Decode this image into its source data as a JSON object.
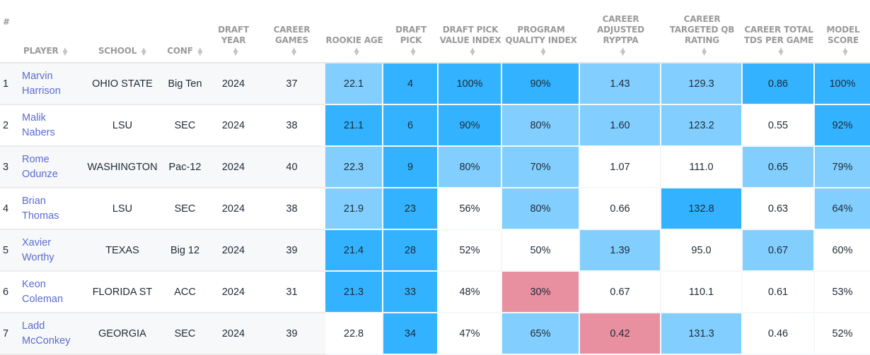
{
  "colors": {
    "strong_blue": "#33b3ff",
    "light_blue": "#82cfff",
    "neutral": "#ffffff",
    "red": "#e88fa0",
    "player_link": "#5b6bd0",
    "header_text": "#9a9a9a"
  },
  "columns": [
    {
      "key": "rank",
      "label": "#"
    },
    {
      "key": "player",
      "label": "PLAYER"
    },
    {
      "key": "school",
      "label": "SCHOOL"
    },
    {
      "key": "conf",
      "label": "CONF"
    },
    {
      "key": "draft_year",
      "label": "DRAFT YEAR"
    },
    {
      "key": "career_games",
      "label": "CAREER GAMES"
    },
    {
      "key": "rookie_age",
      "label": "ROOKIE AGE"
    },
    {
      "key": "draft_pick",
      "label": "DRAFT PICK"
    },
    {
      "key": "dpvi",
      "label": "DRAFT PICK VALUE INDEX"
    },
    {
      "key": "pqi",
      "label": "PROGRAM QUALITY INDEX"
    },
    {
      "key": "ryptpa",
      "label": "CAREER ADJUSTED RYPTPA"
    },
    {
      "key": "qb_rating",
      "label": "CAREER TARGETED QB RATING"
    },
    {
      "key": "tds_pg",
      "label": "CAREER TOTAL TDS PER GAME"
    },
    {
      "key": "model_score",
      "label": "MODEL SCORE"
    }
  ],
  "rows": [
    {
      "rank": "1",
      "first": "Marvin",
      "last": "Harrison",
      "school": "OHIO STATE",
      "conf": "Big Ten",
      "draft_year": "2024",
      "career_games": "37",
      "rookie_age": "22.1",
      "draft_pick": "4",
      "dpvi": "100%",
      "pqi": "90%",
      "ryptpa": "1.43",
      "qb_rating": "129.3",
      "tds_pg": "0.86",
      "model_score": "100%",
      "heat": {
        "rookie_age": "h2",
        "draft_pick": "h3",
        "dpvi": "h3",
        "pqi": "h3",
        "ryptpa": "h2",
        "qb_rating": "h2",
        "tds_pg": "h3",
        "model_score": "h3"
      }
    },
    {
      "rank": "2",
      "first": "Malik",
      "last": "Nabers",
      "school": "LSU",
      "conf": "SEC",
      "draft_year": "2024",
      "career_games": "38",
      "rookie_age": "21.1",
      "draft_pick": "6",
      "dpvi": "90%",
      "pqi": "80%",
      "ryptpa": "1.60",
      "qb_rating": "123.2",
      "tds_pg": "0.55",
      "model_score": "92%",
      "heat": {
        "rookie_age": "h3",
        "draft_pick": "h3",
        "dpvi": "h3",
        "pqi": "h2",
        "ryptpa": "h2",
        "qb_rating": "h2",
        "tds_pg": "h0",
        "model_score": "h3"
      }
    },
    {
      "rank": "3",
      "first": "Rome",
      "last": "Odunze",
      "school": "WASHINGTON",
      "conf": "Pac-12",
      "draft_year": "2024",
      "career_games": "40",
      "rookie_age": "22.3",
      "draft_pick": "9",
      "dpvi": "80%",
      "pqi": "70%",
      "ryptpa": "1.07",
      "qb_rating": "111.0",
      "tds_pg": "0.65",
      "model_score": "79%",
      "heat": {
        "rookie_age": "h2",
        "draft_pick": "h3",
        "dpvi": "h2",
        "pqi": "h2",
        "ryptpa": "h0",
        "qb_rating": "h0",
        "tds_pg": "h2",
        "model_score": "h2"
      }
    },
    {
      "rank": "4",
      "first": "Brian",
      "last": "Thomas",
      "school": "LSU",
      "conf": "SEC",
      "draft_year": "2024",
      "career_games": "38",
      "rookie_age": "21.9",
      "draft_pick": "23",
      "dpvi": "56%",
      "pqi": "80%",
      "ryptpa": "0.66",
      "qb_rating": "132.8",
      "tds_pg": "0.63",
      "model_score": "64%",
      "heat": {
        "rookie_age": "h2",
        "draft_pick": "h3",
        "dpvi": "h0",
        "pqi": "h2",
        "ryptpa": "h0",
        "qb_rating": "h3",
        "tds_pg": "h0",
        "model_score": "h2"
      }
    },
    {
      "rank": "5",
      "first": "Xavier",
      "last": "Worthy",
      "school": "TEXAS",
      "conf": "Big 12",
      "draft_year": "2024",
      "career_games": "39",
      "rookie_age": "21.4",
      "draft_pick": "28",
      "dpvi": "52%",
      "pqi": "50%",
      "ryptpa": "1.39",
      "qb_rating": "95.0",
      "tds_pg": "0.67",
      "model_score": "60%",
      "heat": {
        "rookie_age": "h3",
        "draft_pick": "h3",
        "dpvi": "h0",
        "pqi": "h0",
        "ryptpa": "h2",
        "qb_rating": "h0",
        "tds_pg": "h2",
        "model_score": "h0"
      }
    },
    {
      "rank": "6",
      "first": "Keon",
      "last": "Coleman",
      "school": "FLORIDA ST",
      "conf": "ACC",
      "draft_year": "2024",
      "career_games": "31",
      "rookie_age": "21.3",
      "draft_pick": "33",
      "dpvi": "48%",
      "pqi": "30%",
      "ryptpa": "0.67",
      "qb_rating": "110.1",
      "tds_pg": "0.61",
      "model_score": "53%",
      "heat": {
        "rookie_age": "h3",
        "draft_pick": "h3",
        "dpvi": "h0",
        "pqi": "hr",
        "ryptpa": "h0",
        "qb_rating": "h0",
        "tds_pg": "h0",
        "model_score": "h0"
      }
    },
    {
      "rank": "7",
      "first": "Ladd",
      "last": "McConkey",
      "school": "GEORGIA",
      "conf": "SEC",
      "draft_year": "2024",
      "career_games": "39",
      "rookie_age": "22.8",
      "draft_pick": "34",
      "dpvi": "47%",
      "pqi": "65%",
      "ryptpa": "0.42",
      "qb_rating": "131.3",
      "tds_pg": "0.46",
      "model_score": "52%",
      "heat": {
        "rookie_age": "h0",
        "draft_pick": "h3",
        "dpvi": "h0",
        "pqi": "h2",
        "ryptpa": "hr",
        "qb_rating": "h2",
        "tds_pg": "h0",
        "model_score": "h0"
      }
    }
  ]
}
